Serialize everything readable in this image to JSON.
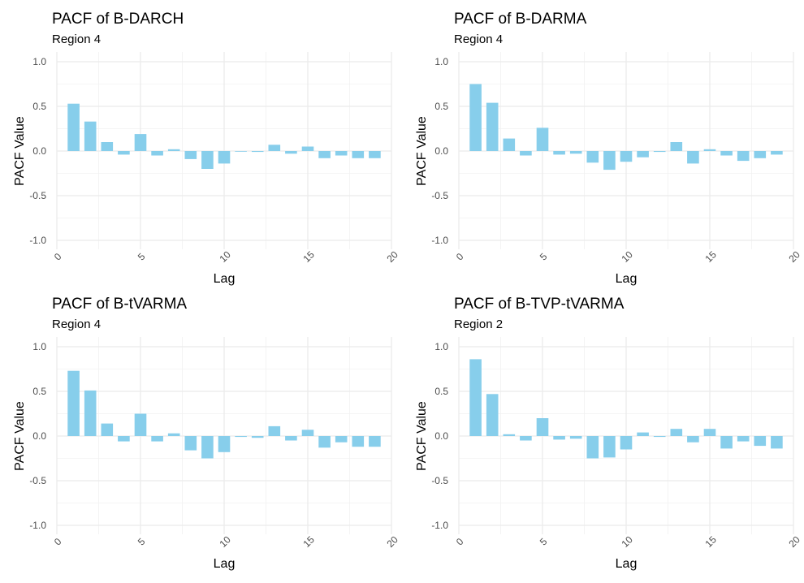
{
  "chart_data": [
    {
      "type": "bar",
      "title": "PACF of B-DARCH",
      "subtitle": "Region 4",
      "xlabel": "Lag",
      "ylabel": "PACF Value",
      "xlim": [
        0,
        20
      ],
      "ylim": [
        -1.0,
        1.0
      ],
      "xticks": [
        "0",
        "5",
        "10",
        "15",
        "20"
      ],
      "yticks": [
        "-1.0",
        "-0.5",
        "0.0",
        "0.5",
        "1.0"
      ],
      "grid": true,
      "color": "#87CEEB",
      "lags": [
        1,
        2,
        3,
        4,
        5,
        6,
        7,
        8,
        9,
        10,
        11,
        12,
        13,
        14,
        15,
        16,
        17,
        18,
        19
      ],
      "values": [
        0.53,
        0.33,
        0.1,
        -0.04,
        0.19,
        -0.05,
        0.02,
        -0.09,
        -0.2,
        -0.14,
        0.0,
        -0.01,
        0.07,
        -0.03,
        0.05,
        -0.08,
        -0.05,
        -0.08,
        -0.08
      ]
    },
    {
      "type": "bar",
      "title": "PACF of B-DARMA",
      "subtitle": "Region 4",
      "xlabel": "Lag",
      "ylabel": "PACF Value",
      "xlim": [
        0,
        20
      ],
      "ylim": [
        -1.0,
        1.0
      ],
      "xticks": [
        "0",
        "5",
        "10",
        "15",
        "20"
      ],
      "yticks": [
        "-1.0",
        "-0.5",
        "0.0",
        "0.5",
        "1.0"
      ],
      "grid": true,
      "color": "#87CEEB",
      "lags": [
        1,
        2,
        3,
        4,
        5,
        6,
        7,
        8,
        9,
        10,
        11,
        12,
        13,
        14,
        15,
        16,
        17,
        18,
        19
      ],
      "values": [
        0.75,
        0.54,
        0.14,
        -0.05,
        0.26,
        -0.04,
        -0.03,
        -0.13,
        -0.21,
        -0.12,
        -0.07,
        -0.01,
        0.1,
        -0.14,
        0.02,
        -0.05,
        -0.11,
        -0.08,
        -0.04
      ]
    },
    {
      "type": "bar",
      "title": "PACF of B-tVARMA",
      "subtitle": "Region 4",
      "xlabel": "Lag",
      "ylabel": "PACF Value",
      "xlim": [
        0,
        20
      ],
      "ylim": [
        -1.0,
        1.0
      ],
      "xticks": [
        "0",
        "5",
        "10",
        "15",
        "20"
      ],
      "yticks": [
        "-1.0",
        "-0.5",
        "0.0",
        "0.5",
        "1.0"
      ],
      "grid": true,
      "color": "#87CEEB",
      "lags": [
        1,
        2,
        3,
        4,
        5,
        6,
        7,
        8,
        9,
        10,
        11,
        12,
        13,
        14,
        15,
        16,
        17,
        18,
        19
      ],
      "values": [
        0.73,
        0.51,
        0.14,
        -0.06,
        0.25,
        -0.06,
        0.03,
        -0.16,
        -0.25,
        -0.18,
        -0.01,
        -0.02,
        0.11,
        -0.05,
        0.07,
        -0.13,
        -0.07,
        -0.12,
        -0.12
      ]
    },
    {
      "type": "bar",
      "title": "PACF of B-TVP-tVARMA",
      "subtitle": "Region 2",
      "xlabel": "Lag",
      "ylabel": "PACF Value",
      "xlim": [
        0,
        20
      ],
      "ylim": [
        -1.0,
        1.0
      ],
      "xticks": [
        "0",
        "5",
        "10",
        "15",
        "20"
      ],
      "yticks": [
        "-1.0",
        "-0.5",
        "0.0",
        "0.5",
        "1.0"
      ],
      "grid": true,
      "color": "#87CEEB",
      "lags": [
        1,
        2,
        3,
        4,
        5,
        6,
        7,
        8,
        9,
        10,
        11,
        12,
        13,
        14,
        15,
        16,
        17,
        18,
        19
      ],
      "values": [
        0.86,
        0.47,
        0.02,
        -0.05,
        0.2,
        -0.04,
        -0.03,
        -0.25,
        -0.24,
        -0.15,
        0.04,
        -0.01,
        0.08,
        -0.07,
        0.08,
        -0.14,
        -0.06,
        -0.11,
        -0.14
      ]
    }
  ]
}
